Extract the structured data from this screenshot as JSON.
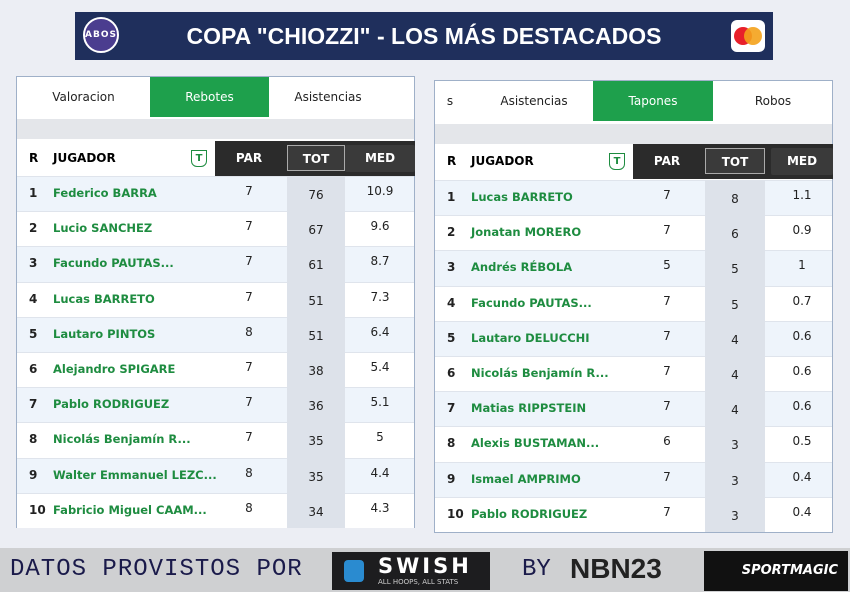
{
  "header": {
    "logo": "ABOS",
    "title": "COPA \"CHIOZZI\" - LOS MÁS DESTACADOS"
  },
  "tables": [
    {
      "tabs": [
        "Valoracion",
        "Rebotes",
        "Asistencias"
      ],
      "active_tab": 1,
      "columns": [
        "R",
        "JUGADOR",
        "T",
        "PAR",
        "TOT",
        "MED"
      ],
      "rows": [
        [
          1,
          "Federico BARRA",
          7,
          76,
          10.9
        ],
        [
          2,
          "Lucio SANCHEZ",
          7,
          67,
          9.6
        ],
        [
          3,
          "Facundo PAUTAS...",
          7,
          61,
          8.7
        ],
        [
          4,
          "Lucas BARRETO",
          7,
          51,
          7.3
        ],
        [
          5,
          "Lautaro PINTOS",
          8,
          51,
          6.4
        ],
        [
          6,
          "Alejandro SPIGARE",
          7,
          38,
          5.4
        ],
        [
          7,
          "Pablo RODRIGUEZ",
          7,
          36,
          5.1
        ],
        [
          8,
          "Nicolás Benjamín R...",
          7,
          35,
          5
        ],
        [
          9,
          "Walter Emmanuel LEZC...",
          8,
          35,
          4.4
        ],
        [
          10,
          "Fabricio Miguel CAAM...",
          8,
          34,
          4.3
        ]
      ]
    },
    {
      "tabs": [
        "s",
        "Asistencias",
        "Tapones",
        "Robos"
      ],
      "active_tab": 2,
      "columns": [
        "R",
        "JUGADOR",
        "T",
        "PAR",
        "TOT",
        "MED"
      ],
      "rows": [
        [
          1,
          "Lucas BARRETO",
          7,
          8,
          1.1
        ],
        [
          2,
          "Jonatan MORERO",
          7,
          6,
          0.9
        ],
        [
          3,
          "Andrés RÉBOLA",
          5,
          5,
          1
        ],
        [
          4,
          "Facundo PAUTAS...",
          7,
          5,
          0.7
        ],
        [
          5,
          "Lautaro DELUCCHI",
          7,
          4,
          0.6
        ],
        [
          6,
          "Nicolás Benjamín R...",
          7,
          4,
          0.6
        ],
        [
          7,
          "Matias RIPPSTEIN",
          7,
          4,
          0.6
        ],
        [
          8,
          "Alexis BUSTAMAN...",
          6,
          3,
          0.5
        ],
        [
          9,
          "Ismael AMPRIMO",
          7,
          3,
          0.4
        ],
        [
          10,
          "Pablo RODRIGUEZ",
          7,
          3,
          0.4
        ]
      ]
    }
  ],
  "footer": {
    "provided": "DATOS PROVISTOS POR",
    "swish": "SWISH",
    "swish_tagline": "ALL HOOPS, ALL STATS",
    "by": "BY",
    "nbn": "NBN23",
    "sportmagic": "SPORTMAGIC"
  }
}
